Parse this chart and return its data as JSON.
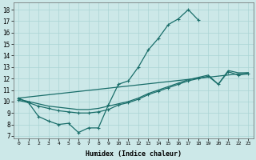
{
  "xlabel": "Humidex (Indice chaleur)",
  "bg_color": "#cce8e8",
  "line_color": "#1a6e6a",
  "xlim": [
    -0.5,
    23.5
  ],
  "ylim": [
    6.8,
    18.6
  ],
  "yticks": [
    7,
    8,
    9,
    10,
    11,
    12,
    13,
    14,
    15,
    16,
    17,
    18
  ],
  "xticks": [
    0,
    1,
    2,
    3,
    4,
    5,
    6,
    7,
    8,
    9,
    10,
    11,
    12,
    13,
    14,
    15,
    16,
    17,
    18,
    19,
    20,
    21,
    22,
    23
  ],
  "curve_x": [
    0,
    1,
    2,
    3,
    4,
    5,
    6,
    7,
    8,
    9,
    10,
    11,
    12,
    13,
    14,
    15,
    16,
    17,
    18
  ],
  "curve_y": [
    10.3,
    9.9,
    8.7,
    8.3,
    8.0,
    8.1,
    7.3,
    7.7,
    7.7,
    9.7,
    11.5,
    11.8,
    13.0,
    14.5,
    15.5,
    16.7,
    17.2,
    18.0,
    17.1
  ],
  "line2_x": [
    0,
    1,
    2,
    3,
    4,
    5,
    6,
    7,
    8,
    9,
    10,
    11,
    12,
    13,
    14,
    15,
    16,
    17,
    18,
    19,
    20,
    21,
    22,
    23
  ],
  "line2_y": [
    10.2,
    10.0,
    9.8,
    9.6,
    9.5,
    9.4,
    9.3,
    9.3,
    9.4,
    9.6,
    9.8,
    10.0,
    10.3,
    10.7,
    11.0,
    11.3,
    11.6,
    11.9,
    12.1,
    12.3,
    11.5,
    12.7,
    12.5,
    12.5
  ],
  "line3_x": [
    0,
    23
  ],
  "line3_y": [
    10.3,
    12.5
  ],
  "line4_x": [
    0,
    1,
    2,
    3,
    4,
    5,
    6,
    7,
    8,
    9,
    10,
    11,
    12,
    13,
    14,
    15,
    16,
    17,
    18,
    19,
    20,
    21,
    22,
    23
  ],
  "line4_y": [
    10.1,
    9.9,
    9.6,
    9.4,
    9.2,
    9.1,
    9.0,
    9.0,
    9.1,
    9.3,
    9.7,
    9.9,
    10.2,
    10.6,
    10.9,
    11.2,
    11.5,
    11.8,
    12.0,
    12.2,
    11.5,
    12.6,
    12.3,
    12.4
  ]
}
